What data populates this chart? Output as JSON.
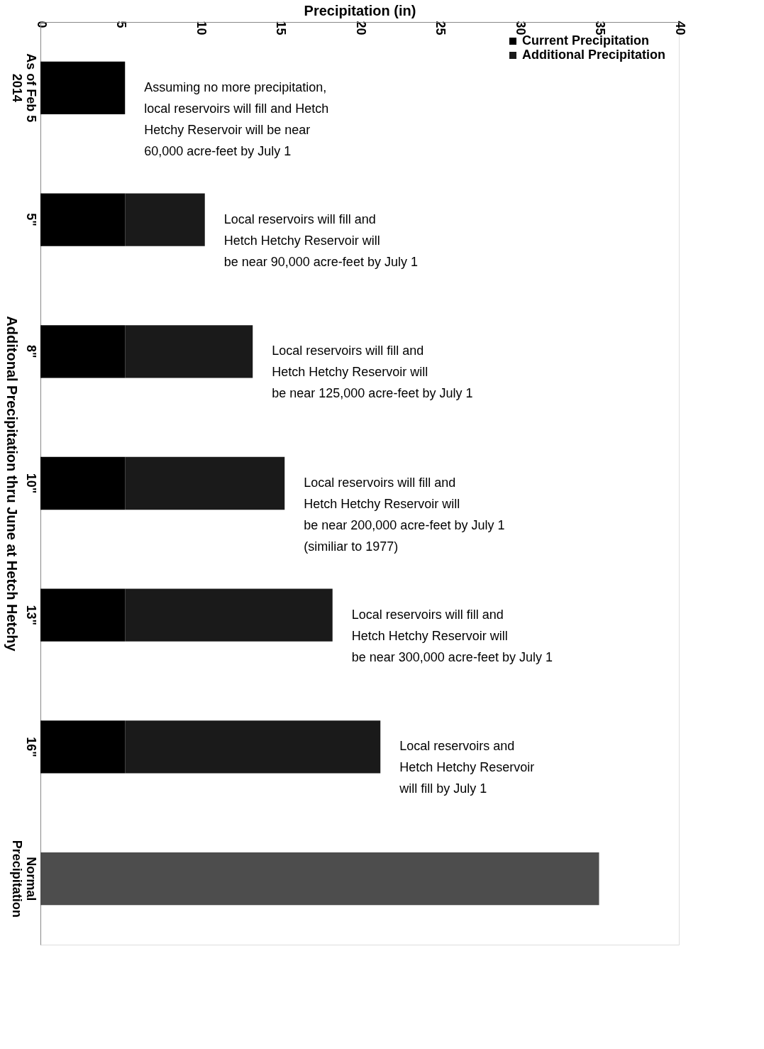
{
  "chart_data": {
    "type": "bar",
    "orientation": "horizontal",
    "stacked": true,
    "xlabel": "Precipitation (in)",
    "ylabel": "Additonal Precipitation thru June at Hetch Hetchy",
    "categories": [
      "As of Feb 5\n2014",
      "5\"",
      "8\"",
      "10\"",
      "13\"",
      "16\"",
      "Normal\nPrecipitation"
    ],
    "series": [
      {
        "name": "Current Precipitation",
        "color": "#000000",
        "values": [
          5.3,
          5.3,
          5.3,
          5.3,
          5.3,
          5.3,
          null
        ]
      },
      {
        "name": "Additional Precipitation",
        "color": "#1a1a1a",
        "values": [
          0,
          5,
          8,
          10,
          13,
          16,
          null
        ]
      },
      {
        "color": "#4d4d4d",
        "values": [
          null,
          null,
          null,
          null,
          null,
          null,
          35
        ]
      }
    ],
    "xlim": [
      0,
      40
    ],
    "xticks": [
      0,
      5,
      10,
      15,
      20,
      25,
      30,
      35,
      40
    ],
    "grid": false,
    "legend": "top right",
    "annotations": [
      "Assuming no more precipitation,\n local reservoirs will fill and Hetch\nHetchy Reservoir will be near\n60,000 acre-feet by July 1",
      "Local reservoirs will fill and\nHetch Hetchy Reservoir will\nbe near  90,000 acre-feet by July 1",
      "Local reservoirs will fill and\nHetch Hetchy Reservoir will\nbe near 125,000 acre-feet by July 1",
      "Local reservoirs will fill and\nHetch Hetchy Reservoir will\nbe near 200,000 acre-feet by July 1\n(similiar to 1977)",
      "Local reservoirs will fill and\nHetch Hetchy Reservoir will\nbe near 300,000 acre-feet by July 1",
      "Local reservoirs  and\nHetch Hetchy Reservoir\nwill  fill by July 1"
    ]
  }
}
